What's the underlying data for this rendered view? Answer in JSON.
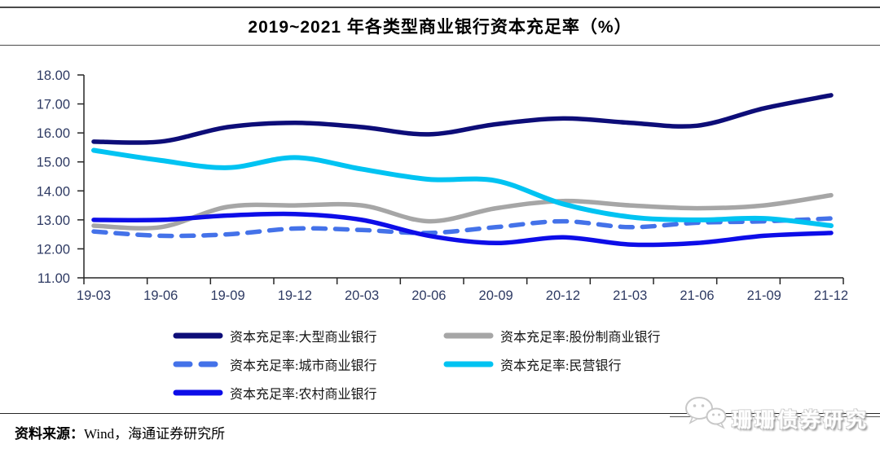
{
  "title": "2019~2021 年各类型商业银行资本充足率（%）",
  "source": {
    "label": "资料来源：",
    "text": "Wind，海通证券研究所"
  },
  "watermark": {
    "text": "珊珊债券研究",
    "icon": "wechat-chat-bubbles-icon"
  },
  "colors": {
    "axis_label": "#2E3A63",
    "axis_line": "#262626",
    "divider": "#404040"
  },
  "chart_data": {
    "type": "line",
    "title": "2019~2021 年各类型商业银行资本充足率（%）",
    "xlabel": "",
    "ylabel": "",
    "ylim": [
      11.0,
      18.0
    ],
    "grid": false,
    "legend_position": "bottom",
    "y_ticks": [
      "18.00",
      "17.00",
      "16.00",
      "15.00",
      "14.00",
      "13.00",
      "12.00",
      "11.00"
    ],
    "categories": [
      "19-03",
      "19-06",
      "19-09",
      "19-12",
      "20-03",
      "20-06",
      "20-09",
      "20-12",
      "21-03",
      "21-06",
      "21-09",
      "21-12"
    ],
    "series": [
      {
        "name": "资本充足率:大型商业银行",
        "color": "#0D0D78",
        "dash": "solid",
        "width": 5.5,
        "values": [
          15.7,
          15.7,
          16.2,
          16.35,
          16.2,
          15.95,
          16.3,
          16.5,
          16.35,
          16.25,
          16.85,
          17.3
        ]
      },
      {
        "name": "资本充足率:股份制商业银行",
        "color": "#A6A6A6",
        "dash": "solid",
        "width": 5.5,
        "values": [
          12.8,
          12.75,
          13.45,
          13.5,
          13.5,
          12.95,
          13.4,
          13.65,
          13.5,
          13.4,
          13.5,
          13.85
        ]
      },
      {
        "name": "资本充足率:城市商业银行",
        "color": "#4472E9",
        "dash": "dashed",
        "width": 5.5,
        "values": [
          12.6,
          12.45,
          12.5,
          12.7,
          12.65,
          12.55,
          12.75,
          12.95,
          12.75,
          12.9,
          12.95,
          13.05
        ]
      },
      {
        "name": "资本充足率:民营银行",
        "color": "#00C3F2",
        "dash": "solid",
        "width": 6,
        "values": [
          15.4,
          15.05,
          14.8,
          15.15,
          14.75,
          14.4,
          14.35,
          13.55,
          13.1,
          13.0,
          13.05,
          12.8
        ]
      },
      {
        "name": "资本充足率:农村商业银行",
        "color": "#0D0DE8",
        "dash": "solid",
        "width": 5.5,
        "values": [
          13.0,
          13.0,
          13.15,
          13.2,
          13.0,
          12.45,
          12.2,
          12.4,
          12.15,
          12.2,
          12.45,
          12.55
        ]
      }
    ]
  }
}
